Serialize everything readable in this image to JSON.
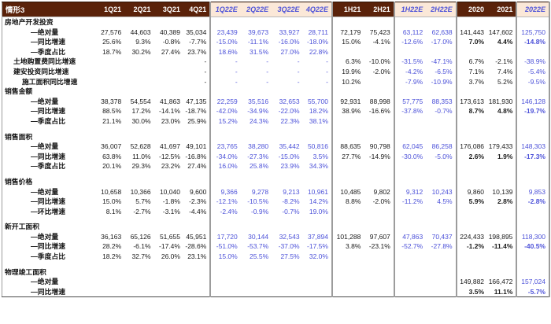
{
  "scenario_label": "情形3",
  "colors": {
    "header_actual_bg": "#5a220a",
    "header_forecast_bg": "#fbe8d8",
    "forecast_text": "#4d52d9",
    "actual_text": "#1a1a1a",
    "grid_line": "#9c9c9c"
  },
  "columns": [
    {
      "label": "1Q21",
      "type": "actual"
    },
    {
      "label": "2Q21",
      "type": "actual"
    },
    {
      "label": "3Q21",
      "type": "actual"
    },
    {
      "label": "4Q21",
      "type": "actual",
      "sep": true
    },
    {
      "label": "1Q22E",
      "type": "forecast"
    },
    {
      "label": "2Q22E",
      "type": "forecast"
    },
    {
      "label": "3Q22E",
      "type": "forecast"
    },
    {
      "label": "4Q22E",
      "type": "forecast",
      "sep": true
    },
    {
      "label": "1H21",
      "type": "actual"
    },
    {
      "label": "2H21",
      "type": "actual",
      "sep": true
    },
    {
      "label": "1H22E",
      "type": "forecast"
    },
    {
      "label": "2H22E",
      "type": "forecast",
      "sep": true
    },
    {
      "label": "2020",
      "type": "actual"
    },
    {
      "label": "2021",
      "type": "actual",
      "sep": true
    },
    {
      "label": "2022E",
      "type": "forecast",
      "emphasis": true
    }
  ],
  "rows": [
    {
      "label": "房地产开发投资",
      "indent": 0,
      "group": true,
      "cells": [
        "",
        "",
        "",
        "",
        "",
        "",
        "",
        "",
        "",
        "",
        "",
        "",
        "",
        "",
        ""
      ]
    },
    {
      "label": "—绝对量",
      "indent": 3,
      "cells": [
        "27,576",
        "44,603",
        "40,389",
        "35,034",
        "23,439",
        "39,673",
        "33,927",
        "28,711",
        "72,179",
        "75,423",
        "63,112",
        "62,638",
        "141,443",
        "147,602",
        "125,750"
      ]
    },
    {
      "label": "—同比增速",
      "indent": 3,
      "bold_annual": true,
      "cells": [
        "25.6%",
        "9.3%",
        "-0.8%",
        "-7.7%",
        "-15.0%",
        "-11.1%",
        "-16.0%",
        "-18.0%",
        "15.0%",
        "-4.1%",
        "-12.6%",
        "-17.0%",
        "7.0%",
        "4.4%",
        "-14.8%"
      ]
    },
    {
      "label": "—季度占比",
      "indent": 3,
      "cells": [
        "18.7%",
        "30.2%",
        "27.4%",
        "23.7%",
        "18.6%",
        "31.5%",
        "27.0%",
        "22.8%",
        "",
        "",
        "",
        "",
        "",
        "",
        ""
      ]
    },
    {
      "label": "土地购置费同比增速",
      "indent": 1,
      "cells": [
        "",
        "",
        "",
        "-",
        "-",
        "-",
        "-",
        "-",
        "6.3%",
        "-10.0%",
        "-31.5%",
        "-47.1%",
        "6.7%",
        "-2.1%",
        "-38.9%"
      ]
    },
    {
      "label": "建安投资同比增速",
      "indent": 1,
      "cells": [
        "",
        "",
        "",
        "-",
        "-",
        "-",
        "-",
        "-",
        "19.9%",
        "-2.0%",
        "-4.2%",
        "-6.5%",
        "7.1%",
        "7.4%",
        "-5.4%"
      ]
    },
    {
      "label": "施工面积同比增速",
      "indent": 2,
      "cells": [
        "",
        "",
        "",
        "-",
        "-",
        "-",
        "-",
        "-",
        "10.2%",
        "",
        "-7.9%",
        "-10.9%",
        "3.7%",
        "5.2%",
        "-9.5%"
      ]
    },
    {
      "label": "销售金额",
      "indent": 0,
      "group": true,
      "cells": [
        "",
        "",
        "",
        "",
        "",
        "",
        "",
        "",
        "",
        "",
        "",
        "",
        "",
        "",
        ""
      ]
    },
    {
      "label": "—绝对量",
      "indent": 3,
      "cells": [
        "38,378",
        "54,554",
        "41,863",
        "47,135",
        "22,259",
        "35,516",
        "32,653",
        "55,700",
        "92,931",
        "88,998",
        "57,775",
        "88,353",
        "173,613",
        "181,930",
        "146,128"
      ]
    },
    {
      "label": "—同比增速",
      "indent": 3,
      "bold_annual": true,
      "cells": [
        "88.5%",
        "17.2%",
        "-14.1%",
        "-18.7%",
        "-42.0%",
        "-34.9%",
        "-22.0%",
        "18.2%",
        "38.9%",
        "-16.6%",
        "-37.8%",
        "-0.7%",
        "8.7%",
        "4.8%",
        "-19.7%"
      ]
    },
    {
      "label": "—季度占比",
      "indent": 3,
      "cells": [
        "21.1%",
        "30.0%",
        "23.0%",
        "25.9%",
        "15.2%",
        "24.3%",
        "22.3%",
        "38.1%",
        "",
        "",
        "",
        "",
        "",
        "",
        ""
      ]
    },
    {
      "spacer": true
    },
    {
      "label": "销售面积",
      "indent": 0,
      "group": true,
      "cells": [
        "",
        "",
        "",
        "",
        "",
        "",
        "",
        "",
        "",
        "",
        "",
        "",
        "",
        "",
        ""
      ]
    },
    {
      "label": "—绝对量",
      "indent": 3,
      "cells": [
        "36,007",
        "52,628",
        "41,697",
        "49,101",
        "23,765",
        "38,280",
        "35,442",
        "50,816",
        "88,635",
        "90,798",
        "62,045",
        "86,258",
        "176,086",
        "179,433",
        "148,303"
      ]
    },
    {
      "label": "—同比增速",
      "indent": 3,
      "bold_annual": true,
      "cells": [
        "63.8%",
        "11.0%",
        "-12.5%",
        "-16.8%",
        "-34.0%",
        "-27.3%",
        "-15.0%",
        "3.5%",
        "27.7%",
        "-14.9%",
        "-30.0%",
        "-5.0%",
        "2.6%",
        "1.9%",
        "-17.3%"
      ]
    },
    {
      "label": "—季度占比",
      "indent": 3,
      "cells": [
        "20.1%",
        "29.3%",
        "23.2%",
        "27.4%",
        "16.0%",
        "25.8%",
        "23.9%",
        "34.3%",
        "",
        "",
        "",
        "",
        "",
        "",
        ""
      ]
    },
    {
      "spacer": true
    },
    {
      "label": "销售价格",
      "indent": 0,
      "group": true,
      "cells": [
        "",
        "",
        "",
        "",
        "",
        "",
        "",
        "",
        "",
        "",
        "",
        "",
        "",
        "",
        ""
      ]
    },
    {
      "label": "—绝对量",
      "indent": 3,
      "cells": [
        "10,658",
        "10,366",
        "10,040",
        "9,600",
        "9,366",
        "9,278",
        "9,213",
        "10,961",
        "10,485",
        "9,802",
        "9,312",
        "10,243",
        "9,860",
        "10,139",
        "9,853"
      ]
    },
    {
      "label": "—同比增速",
      "indent": 3,
      "bold_annual": true,
      "cells": [
        "15.0%",
        "5.7%",
        "-1.8%",
        "-2.3%",
        "-12.1%",
        "-10.5%",
        "-8.2%",
        "14.2%",
        "8.8%",
        "-2.0%",
        "-11.2%",
        "4.5%",
        "5.9%",
        "2.8%",
        "-2.8%"
      ]
    },
    {
      "label": "—环比增速",
      "indent": 3,
      "cells": [
        "8.1%",
        "-2.7%",
        "-3.1%",
        "-4.4%",
        "-2.4%",
        "-0.9%",
        "-0.7%",
        "19.0%",
        "",
        "",
        "",
        "",
        "",
        "",
        ""
      ]
    },
    {
      "spacer": true
    },
    {
      "label": "新开工面积",
      "indent": 0,
      "group": true,
      "cells": [
        "",
        "",
        "",
        "",
        "",
        "",
        "",
        "",
        "",
        "",
        "",
        "",
        "",
        "",
        ""
      ]
    },
    {
      "label": "—绝对量",
      "indent": 3,
      "cells": [
        "36,163",
        "65,126",
        "51,655",
        "45,951",
        "17,720",
        "30,144",
        "32,543",
        "37,894",
        "101,288",
        "97,607",
        "47,863",
        "70,437",
        "224,433",
        "198,895",
        "118,300"
      ]
    },
    {
      "label": "—同比增速",
      "indent": 3,
      "bold_annual": true,
      "cells": [
        "28.2%",
        "-6.1%",
        "-17.4%",
        "-28.6%",
        "-51.0%",
        "-53.7%",
        "-37.0%",
        "-17.5%",
        "3.8%",
        "-23.1%",
        "-52.7%",
        "-27.8%",
        "-1.2%",
        "-11.4%",
        "-40.5%"
      ]
    },
    {
      "label": "—季度占比",
      "indent": 3,
      "cells": [
        "18.2%",
        "32.7%",
        "26.0%",
        "23.1%",
        "15.0%",
        "25.5%",
        "27.5%",
        "32.0%",
        "",
        "",
        "",
        "",
        "",
        "",
        ""
      ]
    },
    {
      "spacer": true
    },
    {
      "label": "物理竣工面积",
      "indent": 0,
      "group": true,
      "cells": [
        "",
        "",
        "",
        "",
        "",
        "",
        "",
        "",
        "",
        "",
        "",
        "",
        "",
        "",
        ""
      ]
    },
    {
      "label": "—绝对量",
      "indent": 3,
      "cells": [
        "",
        "",
        "",
        "",
        "",
        "",
        "",
        "",
        "",
        "",
        "",
        "",
        "149,882",
        "166,472",
        "157,024"
      ]
    },
    {
      "label": "—同比增速",
      "indent": 3,
      "bold_annual": true,
      "cells": [
        "",
        "",
        "",
        "",
        "",
        "",
        "",
        "",
        "",
        "",
        "",
        "",
        "3.5%",
        "11.1%",
        "-5.7%"
      ]
    }
  ]
}
